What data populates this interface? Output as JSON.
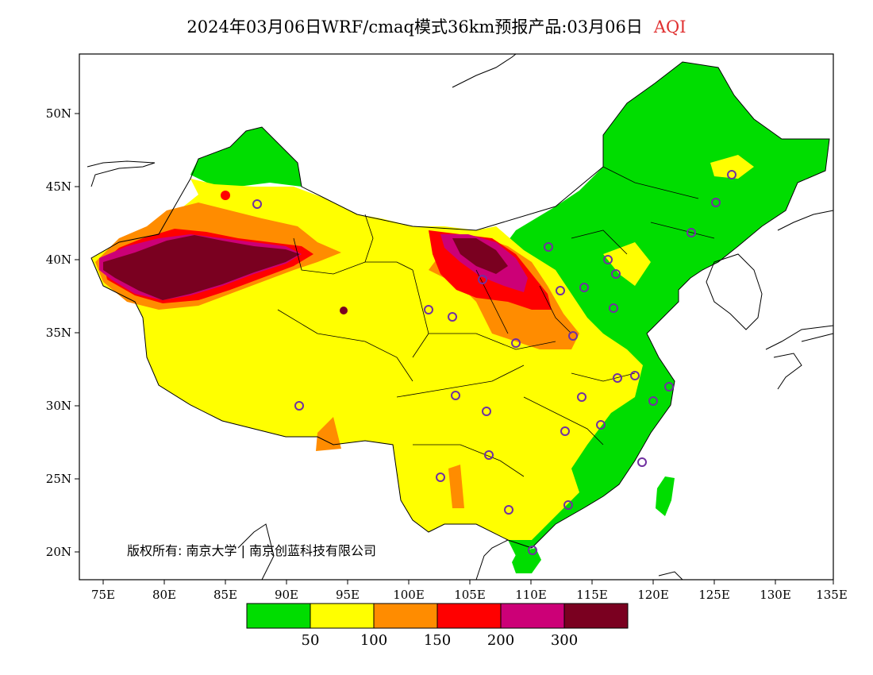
{
  "title": {
    "main": "2024年03月06日WRF/cmaq模式36km预报产品:03月06日",
    "variable": "AQI"
  },
  "axes": {
    "x_ticks": [
      "75E",
      "80E",
      "85E",
      "90E",
      "95E",
      "100E",
      "105E",
      "110E",
      "115E",
      "120E",
      "125E",
      "130E",
      "135E"
    ],
    "y_ticks": [
      "50N",
      "45N",
      "40N",
      "35N",
      "30N",
      "25N",
      "20N"
    ]
  },
  "legend": {
    "colors": [
      "#00dd00",
      "#ffff00",
      "#ff8c00",
      "#ff0000",
      "#cc0077",
      "#7a0020"
    ],
    "labels": [
      "50",
      "100",
      "150",
      "200",
      "300"
    ]
  },
  "copyright": "版权所有: 南京大学 | 南京创蓝科技有限公司",
  "colors": {
    "good": "#00dd00",
    "moderate": "#ffff00",
    "sensitive": "#ff8c00",
    "unhealthy": "#ff0000",
    "very_unhealthy": "#cc0077",
    "hazardous": "#7a0020",
    "station_circle": "#7030a0",
    "outline": "#000000"
  }
}
